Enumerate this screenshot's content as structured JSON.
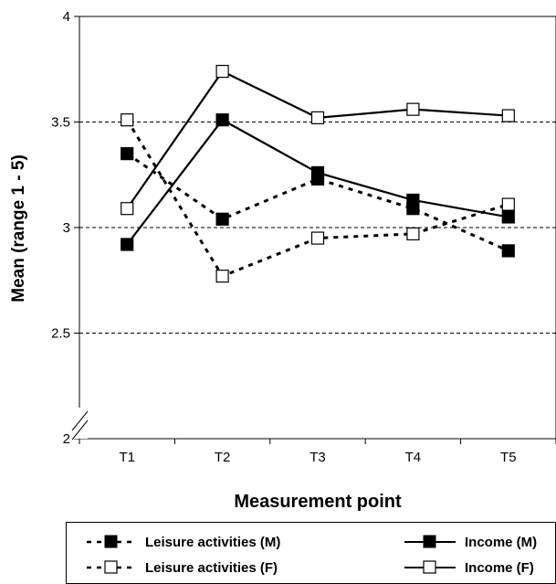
{
  "chart_data": {
    "type": "line",
    "xlabel": "Measurement point",
    "ylabel": "Mean (range 1 - 5)",
    "categories": [
      "T1",
      "T2",
      "T3",
      "T4",
      "T5"
    ],
    "ylim": [
      2,
      4
    ],
    "yticks": [
      "2",
      "2.5",
      "3",
      "3.5",
      "4"
    ],
    "grid": "horizontal dashed at 2.5, 3, 3.5",
    "axis_break": "y-axis break above 2",
    "legend_position": "bottom",
    "series": [
      {
        "name": "Leisure activities (M)",
        "values": [
          3.35,
          3.04,
          3.23,
          3.09,
          2.89
        ],
        "style": "dashed",
        "marker": "filled-square"
      },
      {
        "name": "Leisure activities (F)",
        "values": [
          3.51,
          2.77,
          2.95,
          2.97,
          3.11
        ],
        "style": "dashed",
        "marker": "open-square"
      },
      {
        "name": "Income (M)",
        "values": [
          2.92,
          3.51,
          3.26,
          3.13,
          3.05
        ],
        "style": "solid",
        "marker": "filled-square"
      },
      {
        "name": "Income (F)",
        "values": [
          3.09,
          3.74,
          3.52,
          3.56,
          3.53
        ],
        "style": "solid",
        "marker": "open-square"
      }
    ]
  }
}
